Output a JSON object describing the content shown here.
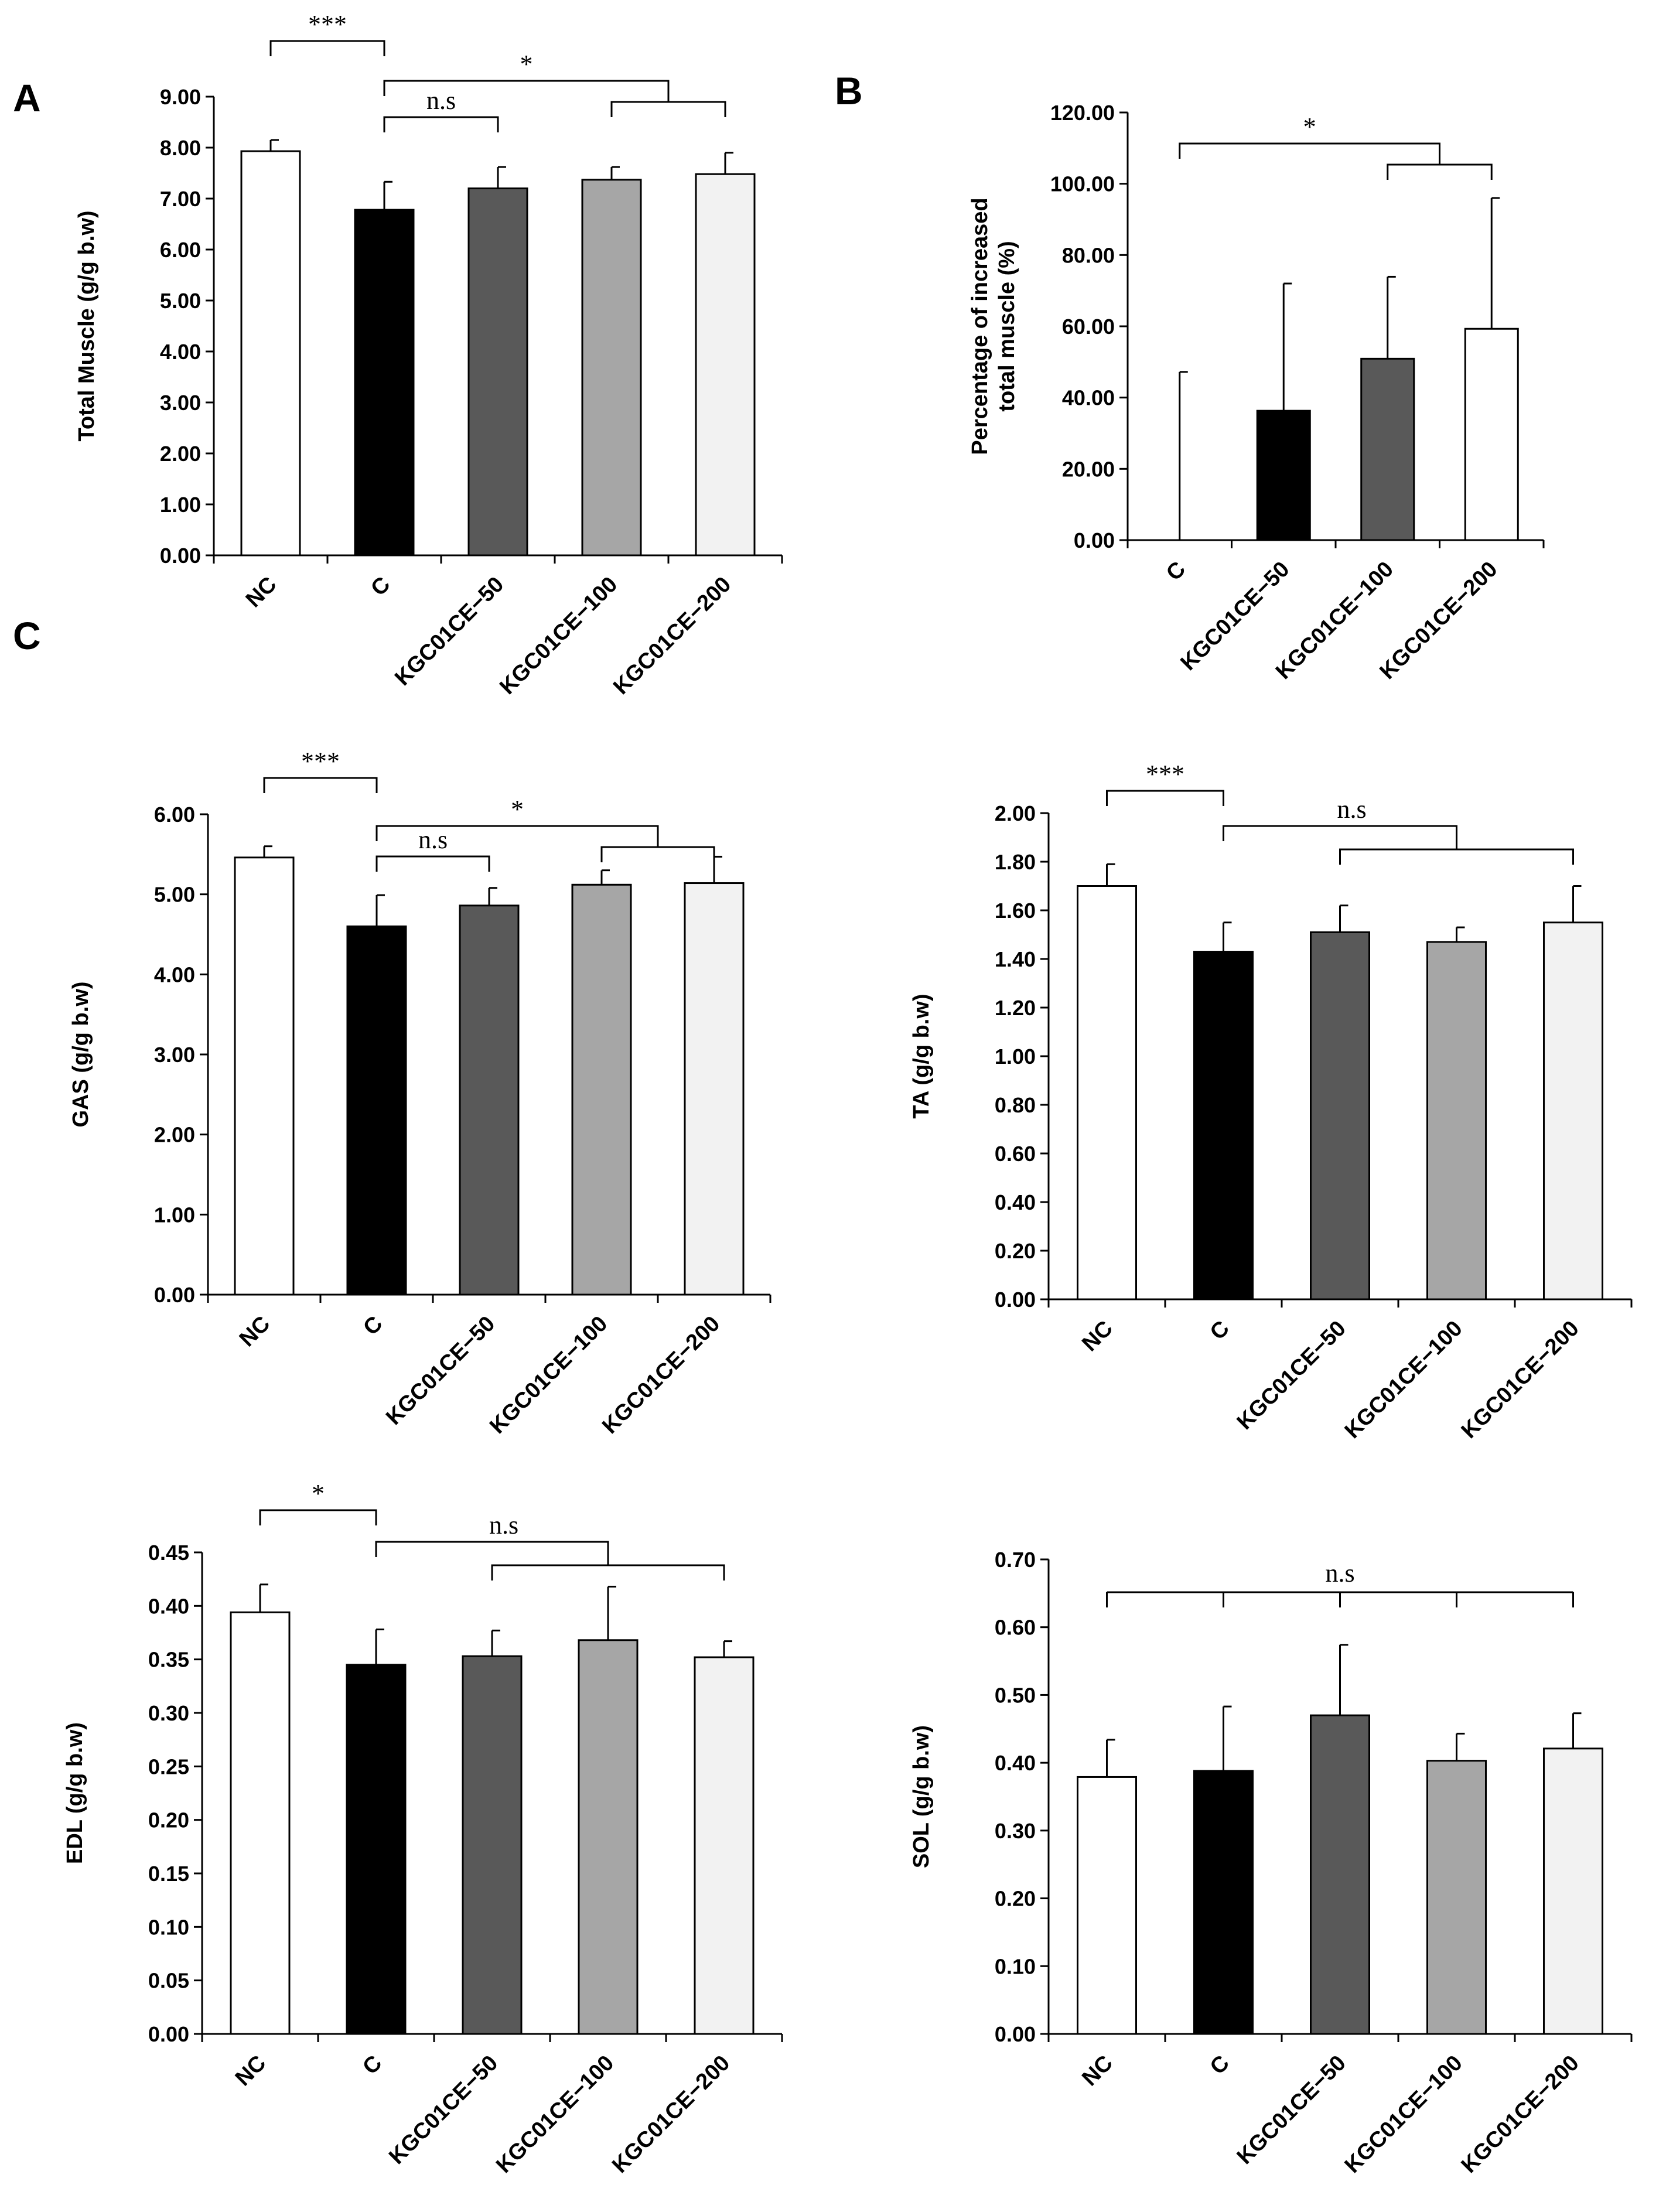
{
  "panel_letters": [
    "A",
    "B",
    "C"
  ],
  "chart_data": [
    {
      "id": "A",
      "type": "bar",
      "panel_letter": "A",
      "ylabel": "Total  Muscle  (g/g b.w)",
      "ylim": [
        0,
        9
      ],
      "yticks": [
        "0.00",
        "1.00",
        "2.00",
        "3.00",
        "4.00",
        "5.00",
        "6.00",
        "7.00",
        "8.00",
        "9.00"
      ],
      "categories": [
        "NC",
        "C",
        "KGC01CE−50",
        "KGC01CE−100",
        "KGC01CE−200"
      ],
      "values": [
        7.93,
        6.78,
        7.2,
        7.37,
        7.48
      ],
      "errors": [
        0.22,
        0.55,
        0.42,
        0.25,
        0.42
      ],
      "colors": [
        "#ffffff",
        "#000000",
        "#595959",
        "#a6a6a6",
        "#f2f2f2"
      ],
      "annotations": [
        {
          "text": "***",
          "groups": [
            0,
            1
          ]
        },
        {
          "text": "n.s",
          "groups": [
            1,
            2
          ]
        },
        {
          "text": "*",
          "groups": [
            1,
            3,
            4
          ]
        }
      ]
    },
    {
      "id": "B",
      "type": "bar",
      "panel_letter": "B",
      "ylabel": "Percentage of increased\ntotal muscle (%)",
      "ylim": [
        0,
        120
      ],
      "yticks": [
        "0.00",
        "20.00",
        "40.00",
        "60.00",
        "80.00",
        "100.00",
        "120.00"
      ],
      "categories": [
        "C",
        "KGC01CE−50",
        "KGC01CE−100",
        "KGC01CE−200"
      ],
      "values": [
        0,
        36.3,
        50.9,
        59.3
      ],
      "errors": [
        47.2,
        35.7,
        23.0,
        36.7
      ],
      "colors": [
        "#ffffff",
        "#000000",
        "#595959",
        "#ffffff"
      ],
      "annotations": [
        {
          "text": "*",
          "groups": [
            0,
            2,
            3
          ]
        }
      ]
    },
    {
      "id": "GAS",
      "type": "bar",
      "ylabel": "GAS  (g/g b.w)",
      "ylim": [
        0,
        6
      ],
      "yticks": [
        "0.00",
        "1.00",
        "2.00",
        "3.00",
        "4.00",
        "5.00",
        "6.00"
      ],
      "categories": [
        "NC",
        "C",
        "KGC01CE−50",
        "KGC01CE−100",
        "KGC01CE−200"
      ],
      "values": [
        5.46,
        4.6,
        4.86,
        5.12,
        5.14
      ],
      "errors": [
        0.14,
        0.39,
        0.22,
        0.18,
        0.33
      ],
      "colors": [
        "#ffffff",
        "#000000",
        "#595959",
        "#a6a6a6",
        "#f2f2f2"
      ],
      "annotations": [
        {
          "text": "***",
          "groups": [
            0,
            1
          ]
        },
        {
          "text": "n.s",
          "groups": [
            1,
            2
          ]
        },
        {
          "text": "*",
          "groups": [
            1,
            3,
            4
          ]
        }
      ]
    },
    {
      "id": "TA",
      "type": "bar",
      "ylabel": "TA  (g/g b.w)",
      "ylim": [
        0,
        2
      ],
      "yticks": [
        "0.00",
        "0.20",
        "0.40",
        "0.60",
        "0.80",
        "1.00",
        "1.20",
        "1.40",
        "1.60",
        "1.80",
        "2.00"
      ],
      "categories": [
        "NC",
        "C",
        "KGC01CE−50",
        "KGC01CE−100",
        "KGC01CE−200"
      ],
      "values": [
        1.7,
        1.43,
        1.51,
        1.47,
        1.55
      ],
      "errors": [
        0.09,
        0.12,
        0.11,
        0.06,
        0.15
      ],
      "colors": [
        "#ffffff",
        "#000000",
        "#595959",
        "#a6a6a6",
        "#f2f2f2"
      ],
      "annotations": [
        {
          "text": "***",
          "groups": [
            0,
            1
          ]
        },
        {
          "text": "n.s",
          "groups": [
            1,
            3,
            2,
            4
          ]
        }
      ]
    },
    {
      "id": "EDL",
      "type": "bar",
      "ylabel": "EDL  (g/g b.w)",
      "ylim": [
        0,
        0.45
      ],
      "yticks": [
        "0.00",
        "0.05",
        "0.10",
        "0.15",
        "0.20",
        "0.25",
        "0.30",
        "0.35",
        "0.40",
        "0.45"
      ],
      "categories": [
        "NC",
        "C",
        "KGC01CE−50",
        "KGC01CE−100",
        "KGC01CE−200"
      ],
      "values": [
        0.394,
        0.345,
        0.353,
        0.368,
        0.352
      ],
      "errors": [
        0.026,
        0.033,
        0.024,
        0.05,
        0.015
      ],
      "colors": [
        "#ffffff",
        "#000000",
        "#595959",
        "#a6a6a6",
        "#f2f2f2"
      ],
      "annotations": [
        {
          "text": "*",
          "groups": [
            0,
            1
          ]
        },
        {
          "text": "n.s",
          "groups": [
            1,
            3,
            2,
            4
          ]
        }
      ]
    },
    {
      "id": "SOL",
      "type": "bar",
      "ylabel": "SOL  (g/g b.w)",
      "ylim": [
        0,
        0.7
      ],
      "yticks": [
        "0.00",
        "0.10",
        "0.20",
        "0.30",
        "0.40",
        "0.50",
        "0.60",
        "0.70"
      ],
      "categories": [
        "NC",
        "C",
        "KGC01CE−50",
        "KGC01CE−100",
        "KGC01CE−200"
      ],
      "values": [
        0.379,
        0.388,
        0.47,
        0.403,
        0.421
      ],
      "errors": [
        0.055,
        0.095,
        0.104,
        0.04,
        0.052
      ],
      "colors": [
        "#ffffff",
        "#000000",
        "#595959",
        "#a6a6a6",
        "#f2f2f2"
      ],
      "annotations": [
        {
          "text": "n.s",
          "groups": [
            0,
            1,
            2,
            3,
            4
          ]
        }
      ]
    }
  ]
}
